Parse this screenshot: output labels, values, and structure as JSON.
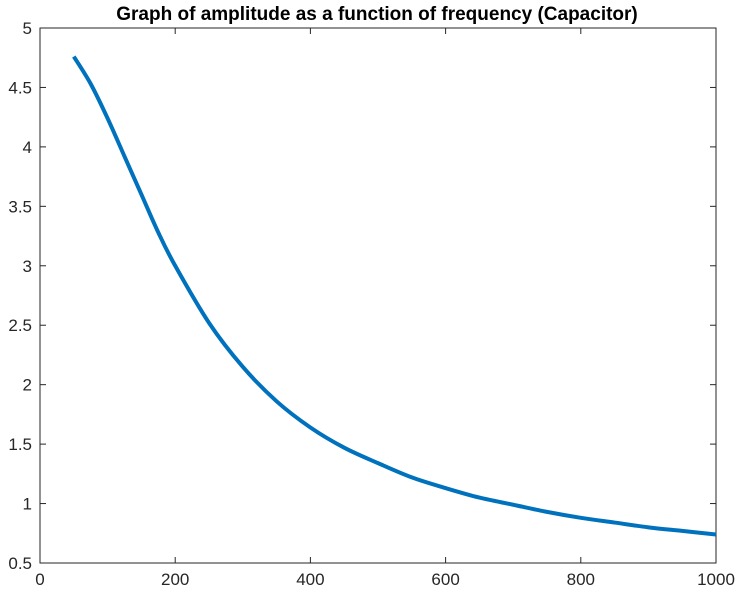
{
  "chart_data": {
    "type": "line",
    "title": "Graph of amplitude as a function of frequency (Capacitor)",
    "xlabel": "",
    "ylabel": "",
    "xlim": [
      0,
      1000
    ],
    "ylim": [
      0.5,
      5
    ],
    "x_ticks": [
      0,
      200,
      400,
      600,
      800,
      1000
    ],
    "y_ticks": [
      0.5,
      1,
      1.5,
      2,
      2.5,
      3,
      3.5,
      4,
      4.5,
      5
    ],
    "x_tick_labels": [
      "0",
      "200",
      "400",
      "600",
      "800",
      "1000"
    ],
    "y_tick_labels": [
      "0.5",
      "1",
      "1.5",
      "2",
      "2.5",
      "3",
      "3.5",
      "4",
      "4.5",
      "5"
    ],
    "grid": false,
    "series": [
      {
        "color": "#0072BD",
        "x": [
          50,
          75,
          100,
          125,
          150,
          175,
          200,
          250,
          300,
          350,
          400,
          450,
          500,
          550,
          600,
          650,
          700,
          750,
          800,
          850,
          900,
          950,
          1000
        ],
        "y": [
          4.76,
          4.53,
          4.24,
          3.92,
          3.6,
          3.28,
          3.0,
          2.52,
          2.15,
          1.86,
          1.64,
          1.47,
          1.34,
          1.22,
          1.13,
          1.05,
          0.99,
          0.93,
          0.88,
          0.84,
          0.8,
          0.77,
          0.74
        ]
      }
    ]
  }
}
